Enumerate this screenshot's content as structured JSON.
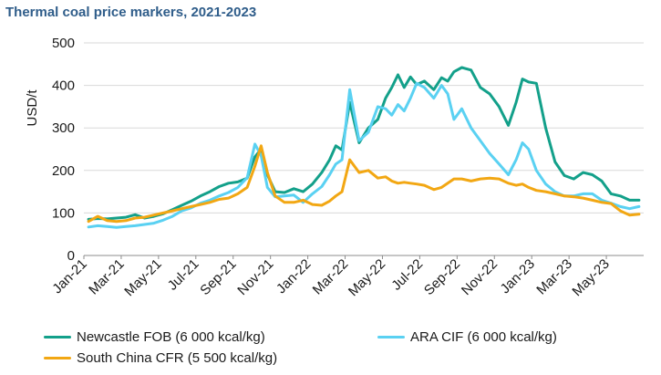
{
  "chart_data": {
    "type": "line",
    "title": "Thermal coal price markers, 2021-2023",
    "ylabel": "USD/t",
    "xlabel": "",
    "ylim": [
      0,
      500
    ],
    "yticks": [
      0,
      100,
      200,
      300,
      400,
      500
    ],
    "x_start": "Jan-21",
    "x_end": "Jun-23",
    "xticks": [
      "Jan-21",
      "Mar-21",
      "May-21",
      "Jul-21",
      "Sep-21",
      "Nov-21",
      "Jan-22",
      "Mar-22",
      "May-22",
      "Jul-22",
      "Sep-22",
      "Nov-22",
      "Jan-23",
      "Mar-23",
      "May-23"
    ],
    "grid": "horizontal",
    "legend_position": "bottom",
    "series": [
      {
        "name": "Newcastle FOB (6 000 kcal/kg)",
        "color": "#13a08a",
        "points": [
          [
            "Jan-21",
            85
          ],
          [
            "Jan-21",
            87
          ],
          [
            "Feb-21",
            86
          ],
          [
            "Feb-21",
            88
          ],
          [
            "Mar-21",
            90
          ],
          [
            "Mar-21",
            96
          ],
          [
            "Apr-21",
            88
          ],
          [
            "Apr-21",
            92
          ],
          [
            "May-21",
            98
          ],
          [
            "May-21",
            108
          ],
          [
            "Jun-21",
            118
          ],
          [
            "Jun-21",
            128
          ],
          [
            "Jul-21",
            140
          ],
          [
            "Jul-21",
            150
          ],
          [
            "Aug-21",
            162
          ],
          [
            "Aug-21",
            170
          ],
          [
            "Sep-21",
            173
          ],
          [
            "Sep-21",
            182
          ],
          [
            "Oct-21",
            232
          ],
          [
            "Oct-21",
            250
          ],
          [
            "Oct-21",
            190
          ],
          [
            "Nov-21",
            150
          ],
          [
            "Nov-21",
            148
          ],
          [
            "Dec-21",
            157
          ],
          [
            "Dec-21",
            150
          ],
          [
            "Jan-22",
            168
          ],
          [
            "Jan-22",
            195
          ],
          [
            "Feb-22",
            225
          ],
          [
            "Feb-22",
            258
          ],
          [
            "Feb-22",
            248
          ],
          [
            "Mar-22",
            360
          ],
          [
            "Mar-22",
            265
          ],
          [
            "Apr-22",
            300
          ],
          [
            "Apr-22",
            320
          ],
          [
            "May-22",
            370
          ],
          [
            "May-22",
            395
          ],
          [
            "May-22",
            425
          ],
          [
            "Jun-22",
            395
          ],
          [
            "Jun-22",
            420
          ],
          [
            "Jun-22",
            402
          ],
          [
            "Jul-22",
            410
          ],
          [
            "Jul-22",
            390
          ],
          [
            "Aug-22",
            418
          ],
          [
            "Aug-22",
            410
          ],
          [
            "Aug-22",
            432
          ],
          [
            "Sep-22",
            442
          ],
          [
            "Sep-22",
            436
          ],
          [
            "Oct-22",
            395
          ],
          [
            "Oct-22",
            380
          ],
          [
            "Nov-22",
            350
          ],
          [
            "Nov-22",
            306
          ],
          [
            "Dec-22",
            360
          ],
          [
            "Dec-22",
            415
          ],
          [
            "Dec-22",
            408
          ],
          [
            "Jan-23",
            405
          ],
          [
            "Jan-23",
            300
          ],
          [
            "Feb-23",
            220
          ],
          [
            "Feb-23",
            188
          ],
          [
            "Mar-23",
            180
          ],
          [
            "Mar-23",
            195
          ],
          [
            "Apr-23",
            190
          ],
          [
            "Apr-23",
            175
          ],
          [
            "May-23",
            145
          ],
          [
            "May-23",
            140
          ],
          [
            "Jun-23",
            130
          ],
          [
            "Jun-23",
            130
          ]
        ]
      },
      {
        "name": "ARA CIF (6 000 kcal/kg)",
        "color": "#5ad1f2",
        "points": [
          [
            "Jan-21",
            67
          ],
          [
            "Jan-21",
            70
          ],
          [
            "Feb-21",
            68
          ],
          [
            "Feb-21",
            66
          ],
          [
            "Mar-21",
            68
          ],
          [
            "Mar-21",
            70
          ],
          [
            "Apr-21",
            73
          ],
          [
            "Apr-21",
            76
          ],
          [
            "May-21",
            83
          ],
          [
            "May-21",
            92
          ],
          [
            "Jun-21",
            105
          ],
          [
            "Jun-21",
            112
          ],
          [
            "Jul-21",
            123
          ],
          [
            "Jul-21",
            130
          ],
          [
            "Aug-21",
            140
          ],
          [
            "Aug-21",
            148
          ],
          [
            "Sep-21",
            160
          ],
          [
            "Sep-21",
            183
          ],
          [
            "Oct-21",
            262
          ],
          [
            "Oct-21",
            235
          ],
          [
            "Oct-21",
            160
          ],
          [
            "Nov-21",
            138
          ],
          [
            "Nov-21",
            140
          ],
          [
            "Dec-21",
            142
          ],
          [
            "Dec-21",
            125
          ],
          [
            "Jan-22",
            145
          ],
          [
            "Jan-22",
            162
          ],
          [
            "Feb-22",
            190
          ],
          [
            "Feb-22",
            215
          ],
          [
            "Feb-22",
            225
          ],
          [
            "Mar-22",
            390
          ],
          [
            "Mar-22",
            270
          ],
          [
            "Apr-22",
            290
          ],
          [
            "Apr-22",
            350
          ],
          [
            "May-22",
            345
          ],
          [
            "May-22",
            330
          ],
          [
            "May-22",
            355
          ],
          [
            "Jun-22",
            340
          ],
          [
            "Jun-22",
            370
          ],
          [
            "Jun-22",
            405
          ],
          [
            "Jul-22",
            395
          ],
          [
            "Jul-22",
            370
          ],
          [
            "Aug-22",
            400
          ],
          [
            "Aug-22",
            380
          ],
          [
            "Aug-22",
            320
          ],
          [
            "Sep-22",
            345
          ],
          [
            "Sep-22",
            300
          ],
          [
            "Oct-22",
            270
          ],
          [
            "Oct-22",
            240
          ],
          [
            "Nov-22",
            215
          ],
          [
            "Nov-22",
            190
          ],
          [
            "Dec-22",
            225
          ],
          [
            "Dec-22",
            265
          ],
          [
            "Dec-22",
            250
          ],
          [
            "Jan-23",
            200
          ],
          [
            "Jan-23",
            168
          ],
          [
            "Feb-23",
            150
          ],
          [
            "Feb-23",
            140
          ],
          [
            "Mar-23",
            140
          ],
          [
            "Mar-23",
            145
          ],
          [
            "Apr-23",
            145
          ],
          [
            "Apr-23",
            130
          ],
          [
            "May-23",
            123
          ],
          [
            "May-23",
            115
          ],
          [
            "Jun-23",
            110
          ],
          [
            "Jun-23",
            115
          ]
        ]
      },
      {
        "name": "South China CFR (5 500 kcal/kg)",
        "color": "#f2a713",
        "points": [
          [
            "Jan-21",
            80
          ],
          [
            "Jan-21",
            92
          ],
          [
            "Feb-21",
            82
          ],
          [
            "Feb-21",
            80
          ],
          [
            "Mar-21",
            82
          ],
          [
            "Mar-21",
            88
          ],
          [
            "Apr-21",
            90
          ],
          [
            "Apr-21",
            95
          ],
          [
            "May-21",
            100
          ],
          [
            "May-21",
            105
          ],
          [
            "Jun-21",
            110
          ],
          [
            "Jun-21",
            115
          ],
          [
            "Jul-21",
            120
          ],
          [
            "Jul-21",
            125
          ],
          [
            "Aug-21",
            132
          ],
          [
            "Aug-21",
            135
          ],
          [
            "Sep-21",
            145
          ],
          [
            "Sep-21",
            160
          ],
          [
            "Oct-21",
            210
          ],
          [
            "Oct-21",
            258
          ],
          [
            "Oct-21",
            195
          ],
          [
            "Nov-21",
            140
          ],
          [
            "Nov-21",
            125
          ],
          [
            "Dec-21",
            125
          ],
          [
            "Dec-21",
            130
          ],
          [
            "Jan-22",
            120
          ],
          [
            "Jan-22",
            118
          ],
          [
            "Feb-22",
            128
          ],
          [
            "Feb-22",
            140
          ],
          [
            "Feb-22",
            150
          ],
          [
            "Mar-22",
            225
          ],
          [
            "Mar-22",
            195
          ],
          [
            "Apr-22",
            200
          ],
          [
            "Apr-22",
            182
          ],
          [
            "May-22",
            185
          ],
          [
            "May-22",
            175
          ],
          [
            "May-22",
            170
          ],
          [
            "Jun-22",
            172
          ],
          [
            "Jun-22",
            170
          ],
          [
            "Jun-22",
            168
          ],
          [
            "Jul-22",
            165
          ],
          [
            "Jul-22",
            155
          ],
          [
            "Aug-22",
            160
          ],
          [
            "Aug-22",
            170
          ],
          [
            "Aug-22",
            180
          ],
          [
            "Sep-22",
            180
          ],
          [
            "Sep-22",
            175
          ],
          [
            "Oct-22",
            180
          ],
          [
            "Oct-22",
            182
          ],
          [
            "Nov-22",
            180
          ],
          [
            "Nov-22",
            170
          ],
          [
            "Dec-22",
            165
          ],
          [
            "Dec-22",
            168
          ],
          [
            "Dec-22",
            160
          ],
          [
            "Jan-23",
            153
          ],
          [
            "Jan-23",
            150
          ],
          [
            "Feb-23",
            145
          ],
          [
            "Feb-23",
            140
          ],
          [
            "Mar-23",
            138
          ],
          [
            "Mar-23",
            135
          ],
          [
            "Apr-23",
            130
          ],
          [
            "Apr-23",
            125
          ],
          [
            "May-23",
            122
          ],
          [
            "May-23",
            105
          ],
          [
            "Jun-23",
            95
          ],
          [
            "Jun-23",
            97
          ]
        ]
      }
    ]
  },
  "legend": [
    {
      "label": "Newcastle FOB (6 000 kcal/kg)",
      "color": "#13a08a"
    },
    {
      "label": "ARA CIF (6 000 kcal/kg)",
      "color": "#5ad1f2"
    },
    {
      "label": "South China CFR (5 500 kcal/kg)",
      "color": "#f2a713"
    }
  ]
}
